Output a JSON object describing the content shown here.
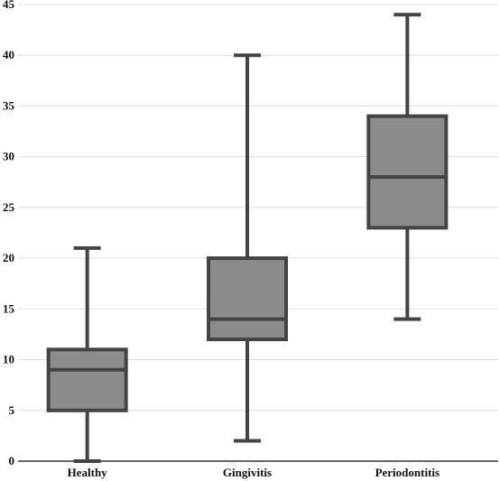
{
  "chart_data": {
    "type": "boxplot",
    "title": "",
    "xlabel": "",
    "ylabel": "",
    "categories": [
      "Healthy",
      "Gingivitis",
      "Periodontitis"
    ],
    "boxes": [
      {
        "category": "Healthy",
        "min": 0,
        "q1": 5,
        "median": 9,
        "q3": 11,
        "max": 21
      },
      {
        "category": "Gingivitis",
        "min": 2,
        "q1": 12,
        "median": 14,
        "q3": 20,
        "max": 40
      },
      {
        "category": "Periodontitis",
        "min": 14,
        "q1": 23,
        "median": 28,
        "q3": 34,
        "max": 44
      }
    ],
    "ylim": [
      0,
      45
    ],
    "yticks": [
      0,
      5,
      10,
      15,
      20,
      25,
      30,
      35,
      40,
      45
    ],
    "grid": true,
    "colors": {
      "box_fill": "#8c8c8c",
      "box_stroke": "#444444",
      "grid": "#dddddd",
      "axis": "#333333"
    }
  }
}
